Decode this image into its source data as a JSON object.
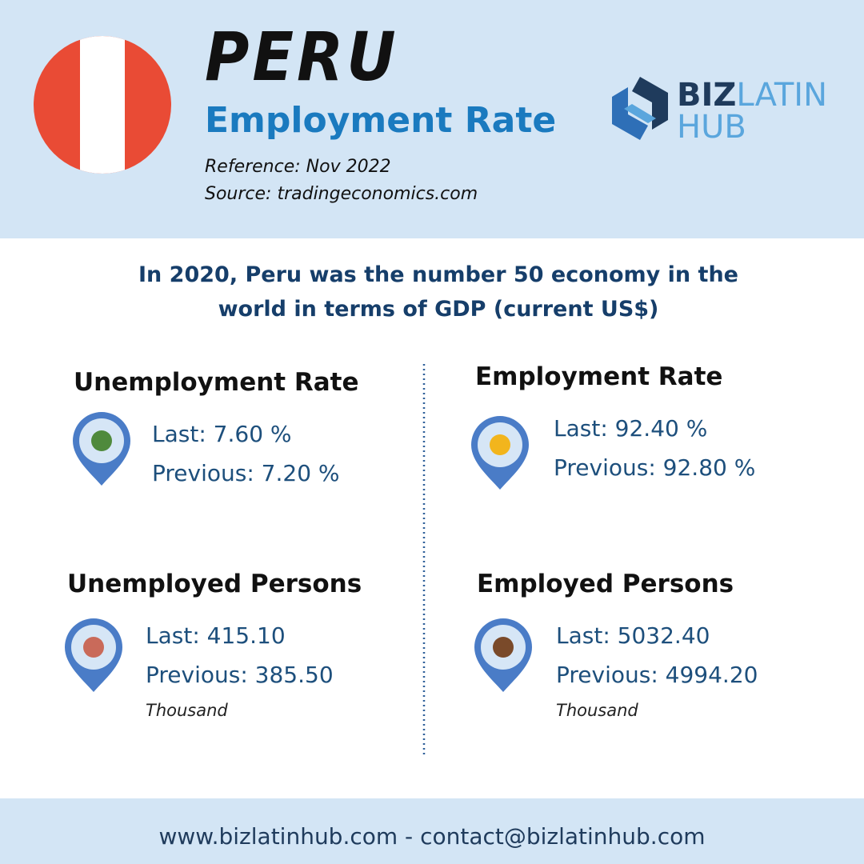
{
  "header": {
    "title": "PERU",
    "subtitle": "Employment Rate",
    "reference": "Reference: Nov 2022",
    "source": "Source: tradingeconomics.com",
    "logo": {
      "part1": "BIZ",
      "part2": "LATIN",
      "part3": "HUB"
    }
  },
  "intro": {
    "lines": [
      "In 2020, Peru was the number 50 economy in the",
      "world in terms of GDP (current US$)"
    ]
  },
  "blocks": [
    {
      "title": "Unemployment Rate",
      "last": "Last: 7.60 %",
      "previous": "Previous: 7.20 %"
    },
    {
      "title": "Employment Rate",
      "last": "Last: 92.40 %",
      "previous": "Previous: 92.80 %"
    },
    {
      "title": "Unemployed Persons",
      "last": "Last: 415.10",
      "previous": "Previous: 385.50",
      "unit": "Thousand"
    },
    {
      "title": "Employed Persons",
      "last": "Last: 5032.40",
      "previous": "Previous: 4994.20",
      "unit": "Thousand"
    }
  ],
  "footer": {
    "text": "www.bizlatinhub.com - contact@bizlatinhub.com"
  }
}
